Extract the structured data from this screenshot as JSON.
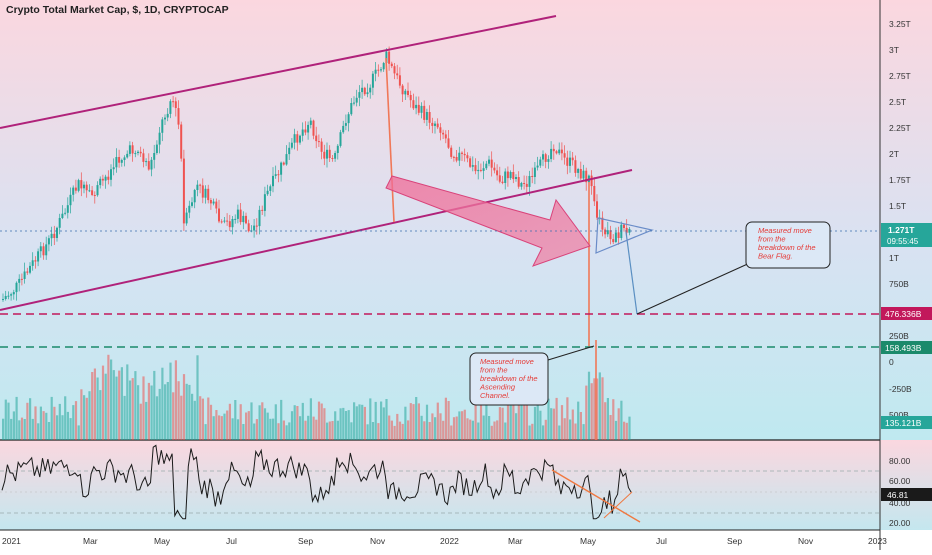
{
  "header": {
    "title": "Crypto Total Market Cap, $, 1D, CRYPTOCAP"
  },
  "colors": {
    "up": "#26a69a",
    "down": "#ef5350",
    "channel": "#b0227a",
    "arrow": "#e0507a",
    "dashed_red": "#c2185b",
    "dashed_green": "#1b8a6b",
    "rsi_line": "#1a1a1a",
    "rsi_trend": "#f07840"
  },
  "price_axis": {
    "ticks": [
      "3.25T",
      "3T",
      "2.75T",
      "2.5T",
      "2.25T",
      "2T",
      "1.75T",
      "1.5T",
      "1T",
      "750B",
      "250B",
      "0",
      "-250B",
      "500B"
    ]
  },
  "price_badges": {
    "last_price": "1.271T",
    "countdown": "09:55:45",
    "level_red": "476.336B",
    "level_green": "158.493B",
    "volume": "135.121B"
  },
  "rsi_axis": {
    "ticks": [
      "80.00",
      "60.00",
      "40.00",
      "20.00"
    ],
    "current": "46.81"
  },
  "time_axis": {
    "ticks": [
      "2021",
      "Mar",
      "May",
      "Jul",
      "Sep",
      "Nov",
      "2022",
      "Mar",
      "May",
      "Jul",
      "Sep",
      "Nov",
      "2023"
    ]
  },
  "annotations": {
    "bear_flag": [
      "Measured move",
      "from the",
      "breakdown of the",
      "Bear Flag."
    ],
    "channel": [
      "Measured move",
      "from the",
      "breakdown of the",
      "Ascending",
      "Channel."
    ]
  },
  "chart_data": {
    "type": "candlestick",
    "title": "Crypto Total Market Cap, $, 1D, CRYPTOCAP",
    "series": [
      {
        "name": "",
        "type": "candlestick",
        "x": [
          "2021-01",
          "2021-02",
          "2021-03",
          "2021-04",
          "2021-05",
          "2021-06",
          "2021-07",
          "2021-08",
          "2021-09",
          "2021-10",
          "2021-11",
          "2021-12",
          "2022-01",
          "2022-02",
          "2022-03",
          "2022-04",
          "2022-05",
          "2022-06"
        ],
        "close": [
          0.95,
          1.45,
          1.85,
          2.3,
          1.75,
          1.45,
          1.7,
          2.0,
          2.05,
          2.55,
          2.7,
          2.3,
          1.85,
          1.85,
          2.05,
          1.9,
          1.35,
          1.27
        ]
      },
      {
        "name": "",
        "type": "volume"
      },
      {
        "name": "",
        "type": "line"
      }
    ],
    "y_range": [
      0,
      3.3
    ],
    "rsi_range": [
      15,
      95
    ],
    "levels": [
      0.476,
      0.158
    ],
    "rsi_current": 46.81
  }
}
